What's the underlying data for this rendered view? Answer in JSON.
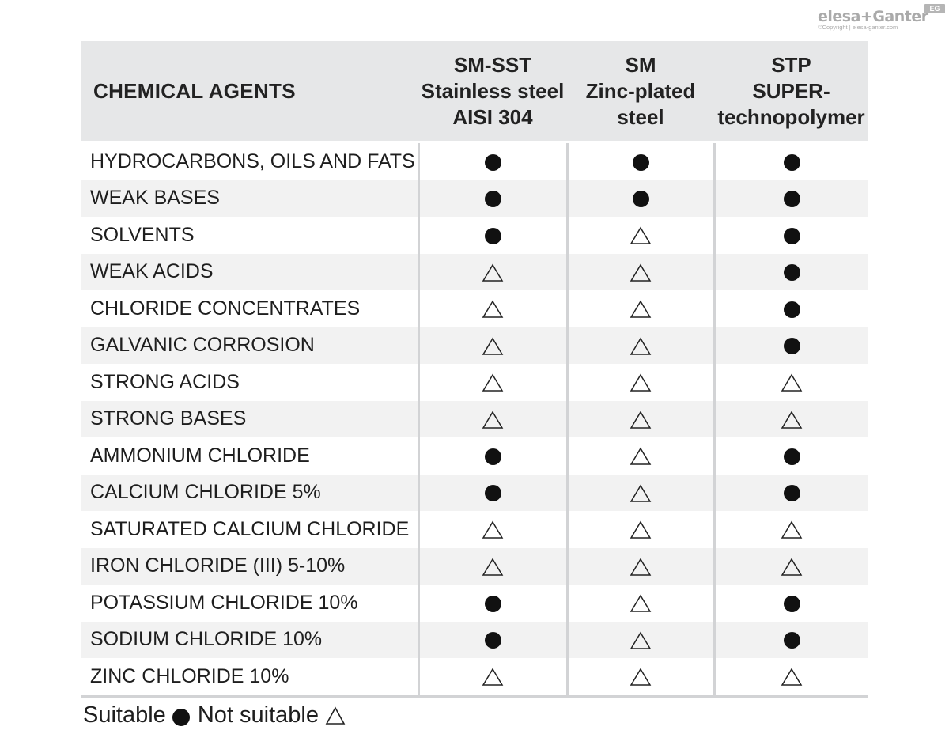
{
  "brand": {
    "logo_text": "elesa+Ganter",
    "badge": "EG",
    "copyright": "©Copyright | elesa-ganter.com"
  },
  "table": {
    "header": {
      "agent_label": "CHEMICAL AGENTS",
      "columns": [
        {
          "line1": "SM-SST",
          "line2": "Stainless steel",
          "line3": "AISI 304"
        },
        {
          "line1": "SM",
          "line2": "Zinc-plated",
          "line3": "steel"
        },
        {
          "line1": "STP",
          "line2": "SUPER-",
          "line3": "technopolymer"
        }
      ]
    },
    "rows": [
      {
        "agent": "HYDROCARBONS, OILS AND FATS",
        "marks": [
          "suitable",
          "suitable",
          "suitable"
        ]
      },
      {
        "agent": "WEAK BASES",
        "marks": [
          "suitable",
          "suitable",
          "suitable"
        ]
      },
      {
        "agent": "SOLVENTS",
        "marks": [
          "suitable",
          "not_suitable",
          "suitable"
        ]
      },
      {
        "agent": "WEAK ACIDS",
        "marks": [
          "not_suitable",
          "not_suitable",
          "suitable"
        ]
      },
      {
        "agent": "CHLORIDE CONCENTRATES",
        "marks": [
          "not_suitable",
          "not_suitable",
          "suitable"
        ]
      },
      {
        "agent": "GALVANIC CORROSION",
        "marks": [
          "not_suitable",
          "not_suitable",
          "suitable"
        ]
      },
      {
        "agent": "STRONG ACIDS",
        "marks": [
          "not_suitable",
          "not_suitable",
          "not_suitable"
        ]
      },
      {
        "agent": "STRONG BASES",
        "marks": [
          "not_suitable",
          "not_suitable",
          "not_suitable"
        ]
      },
      {
        "agent": "AMMONIUM CHLORIDE",
        "marks": [
          "suitable",
          "not_suitable",
          "suitable"
        ]
      },
      {
        "agent": "CALCIUM CHLORIDE 5%",
        "marks": [
          "suitable",
          "not_suitable",
          "suitable"
        ]
      },
      {
        "agent": "SATURATED CALCIUM CHLORIDE",
        "marks": [
          "not_suitable",
          "not_suitable",
          "not_suitable"
        ]
      },
      {
        "agent": "IRON CHLORIDE (III) 5-10%",
        "marks": [
          "not_suitable",
          "not_suitable",
          "not_suitable"
        ]
      },
      {
        "agent": "POTASSIUM CHLORIDE 10%",
        "marks": [
          "suitable",
          "not_suitable",
          "suitable"
        ]
      },
      {
        "agent": "SODIUM CHLORIDE 10%",
        "marks": [
          "suitable",
          "not_suitable",
          "suitable"
        ]
      },
      {
        "agent": "ZINC CHLORIDE 10%",
        "marks": [
          "not_suitable",
          "not_suitable",
          "not_suitable"
        ]
      }
    ]
  },
  "legend": {
    "suitable_label": "Suitable",
    "not_suitable_label": "Not suitable",
    "suitable_icon": "filled-circle-icon",
    "not_suitable_icon": "outline-triangle-icon"
  },
  "colors": {
    "header_bg": "#e6e7e8",
    "stripe_bg": "#f2f2f2",
    "divider": "#d2d3d5",
    "mark": "#111111"
  }
}
